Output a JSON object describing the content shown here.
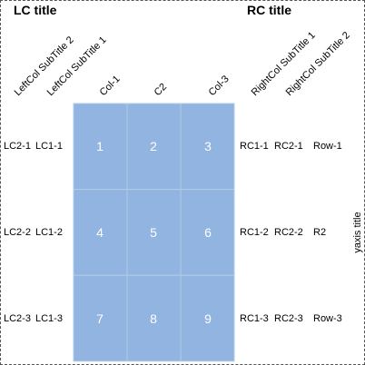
{
  "chart_data": {
    "type": "table",
    "left_title": "LC title",
    "right_title": "RC title",
    "yaxis_title": "yaxis title",
    "left_subtitles": [
      "LeftCol SubTitle 2",
      "LeftCol SubTitle 1"
    ],
    "column_headers": [
      "Col-1",
      "C2",
      "Col-3"
    ],
    "right_subtitles": [
      "RightCol SubTitle 1",
      "RightCol SubTitle 2"
    ],
    "rows": [
      {
        "left": [
          "LC2-1",
          "LC1-1"
        ],
        "values": [
          1,
          2,
          3
        ],
        "right": [
          "RC1-1",
          "RC2-1",
          "Row-1"
        ]
      },
      {
        "left": [
          "LC2-2",
          "LC1-2"
        ],
        "values": [
          4,
          5,
          6
        ],
        "right": [
          "RC1-2",
          "RC2-2",
          "R2"
        ]
      },
      {
        "left": [
          "LC2-3",
          "LC1-3"
        ],
        "values": [
          7,
          8,
          9
        ],
        "right": [
          "RC1-3",
          "RC2-3",
          "Row-3"
        ]
      }
    ],
    "cell_color": "#92b4e0",
    "cell_text_color": "#ffffff"
  }
}
